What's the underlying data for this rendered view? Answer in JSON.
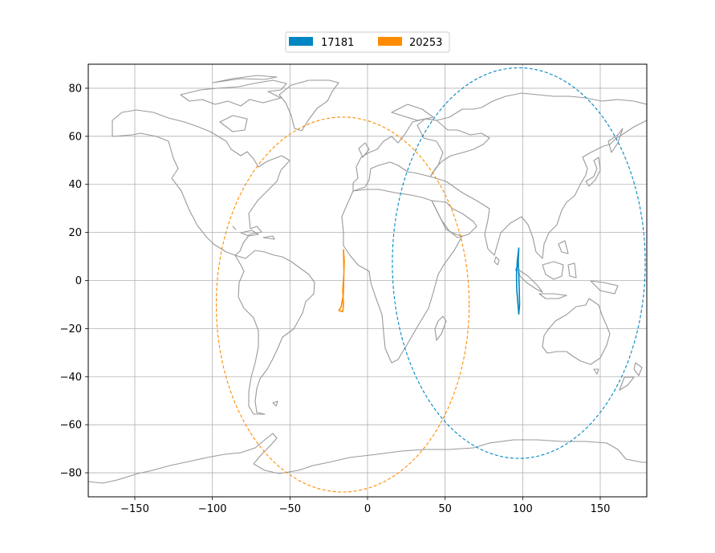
{
  "chart_data": {
    "type": "map",
    "projection": "equirectangular",
    "xlim": [
      -180,
      180
    ],
    "ylim": [
      -90,
      90
    ],
    "xticks": [
      -150,
      -100,
      -50,
      0,
      50,
      100,
      150
    ],
    "yticks": [
      -80,
      -60,
      -40,
      -20,
      0,
      20,
      40,
      60,
      80
    ],
    "xtick_labels": [
      "−150",
      "−100",
      "−50",
      "0",
      "50",
      "100",
      "150"
    ],
    "ytick_labels": [
      "−80",
      "−60",
      "−40",
      "−20",
      "0",
      "20",
      "40",
      "60",
      "80"
    ],
    "grid": true,
    "legend_position": "top-center",
    "coastline_color": "#999999",
    "series": [
      {
        "name": "17181",
        "color": "#0086c3",
        "track": [
          [
            97.5,
            13.5
          ],
          [
            96.5,
            8
          ],
          [
            96,
            2
          ],
          [
            96.2,
            -4
          ],
          [
            97,
            -10
          ],
          [
            97.5,
            -14
          ],
          [
            98,
            -10
          ],
          [
            97.8,
            -4
          ],
          [
            97.5,
            2
          ],
          [
            97.2,
            8
          ],
          [
            97.5,
            13.5
          ],
          [
            96.5,
            6
          ],
          [
            95.6,
            4
          ]
        ],
        "coverage": {
          "center_lon": 97.5,
          "center_lat": 7,
          "lon_radius": 81.5,
          "lat_top": 88.5,
          "lat_bottom": -74
        }
      },
      {
        "name": "20253",
        "color": "#ff8c00",
        "track": [
          [
            -15.5,
            13
          ],
          [
            -15,
            8
          ],
          [
            -15.3,
            2
          ],
          [
            -16,
            -4
          ],
          [
            -15.5,
            -10
          ],
          [
            -16,
            -13
          ],
          [
            -18.5,
            -12.5
          ],
          [
            -17,
            -11
          ],
          [
            -15.6,
            -6
          ],
          [
            -15.2,
            4
          ],
          [
            -15.5,
            13
          ]
        ],
        "coverage": {
          "center_lon": -16,
          "center_lat": -10,
          "lon_radius": 81.5,
          "lat_top": 68,
          "lat_bottom": -88
        }
      }
    ]
  }
}
